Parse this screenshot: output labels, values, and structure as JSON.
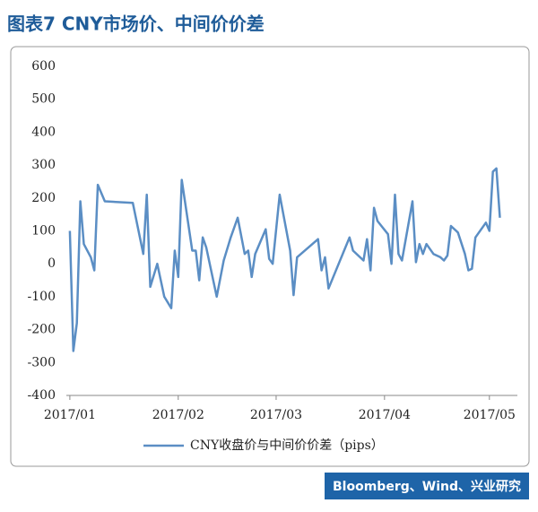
{
  "chart_data": {
    "type": "line",
    "title": "图表7 CNY市场价、中间价价差",
    "x": [
      1,
      2,
      3,
      4,
      5,
      7,
      8,
      9,
      11,
      19,
      22,
      23,
      24,
      26,
      28,
      30,
      31,
      32,
      33,
      36,
      37,
      38,
      39,
      40,
      43,
      45,
      47,
      49,
      51,
      52,
      53,
      54,
      57,
      58,
      59,
      61,
      64,
      65,
      66,
      72,
      73,
      74,
      75,
      81,
      82,
      85,
      86,
      87,
      88,
      89,
      92,
      93,
      94,
      95,
      96,
      98,
      99,
      100,
      101,
      102,
      103,
      105,
      107,
      108,
      109,
      110,
      112,
      114,
      115,
      116,
      117,
      119,
      120,
      121,
      122,
      123,
      124
    ],
    "series": [
      {
        "name": "CNY收盘价与中间价价差（pips）",
        "color": "#5b8ec4",
        "values": [
          100,
          -265,
          -180,
          190,
          60,
          20,
          -20,
          240,
          190,
          185,
          30,
          210,
          -70,
          0,
          -100,
          -135,
          40,
          -40,
          255,
          40,
          40,
          -50,
          80,
          50,
          -100,
          10,
          80,
          140,
          30,
          40,
          -40,
          30,
          105,
          15,
          0,
          210,
          40,
          -95,
          20,
          75,
          -20,
          20,
          -75,
          80,
          40,
          10,
          75,
          -20,
          170,
          130,
          90,
          0,
          210,
          30,
          10,
          130,
          190,
          5,
          60,
          30,
          60,
          30,
          20,
          10,
          25,
          115,
          95,
          30,
          -20,
          -15,
          80,
          110,
          125,
          100,
          280,
          290,
          140
        ]
      }
    ],
    "xlim": [
      0,
      129
    ],
    "xticks": [
      {
        "value": 1,
        "label": "2017/01"
      },
      {
        "value": 32,
        "label": "2017/02"
      },
      {
        "value": 60,
        "label": "2017/03"
      },
      {
        "value": 91,
        "label": "2017/04"
      },
      {
        "value": 121,
        "label": "2017/05"
      }
    ],
    "ylim": [
      -400,
      600
    ],
    "yticks": [
      -400,
      -300,
      -200,
      -100,
      0,
      100,
      200,
      300,
      400,
      500,
      600
    ],
    "grid": false,
    "legend": "bottom",
    "source": "Bloomberg、Wind、兴业研究"
  }
}
